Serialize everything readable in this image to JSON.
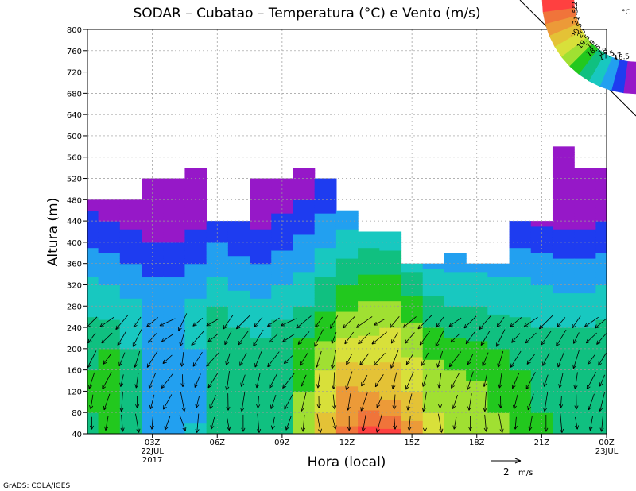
{
  "chart_data": {
    "type": "heatmap",
    "title": "SODAR – Cubatao – Temperatura (°C) e Vento (m/s)",
    "xlabel": "Hora (local)",
    "ylabel": "Altura (m)",
    "ylim": [
      40,
      800
    ],
    "xlim": [
      0,
      24
    ],
    "y_ticks": [
      40,
      80,
      120,
      160,
      200,
      240,
      280,
      320,
      360,
      400,
      440,
      480,
      520,
      560,
      600,
      640,
      680,
      720,
      760,
      800
    ],
    "x_ticks": [
      {
        "x": 3,
        "label": "03Z",
        "sub1": "22JUL",
        "sub2": "2017"
      },
      {
        "x": 6,
        "label": "06Z",
        "sub1": "",
        "sub2": ""
      },
      {
        "x": 9,
        "label": "09Z",
        "sub1": "",
        "sub2": ""
      },
      {
        "x": 12,
        "label": "12Z",
        "sub1": "",
        "sub2": ""
      },
      {
        "x": 15,
        "label": "15Z",
        "sub1": "",
        "sub2": ""
      },
      {
        "x": 18,
        "label": "18Z",
        "sub1": "",
        "sub2": ""
      },
      {
        "x": 21,
        "label": "21Z",
        "sub1": "",
        "sub2": ""
      },
      {
        "x": 24,
        "label": "00Z",
        "sub1": "23JUL",
        "sub2": ""
      }
    ],
    "grid": true,
    "colorbar": {
      "unit": "°C",
      "levels": [
        "22",
        "21.5",
        "21",
        "20.5",
        "20",
        "19.5",
        "19",
        "18.5",
        "18",
        "17.5",
        "17",
        "16.5"
      ],
      "colors": [
        "#ff4040",
        "#f0743a",
        "#ec9a38",
        "#e4c236",
        "#d8e03a",
        "#a0e032",
        "#22c81e",
        "#10c080",
        "#18c8c0",
        "#22a0f0",
        "#1e3cf0",
        "#9618c8"
      ]
    },
    "data_top": [
      480,
      480,
      480,
      520,
      520,
      540,
      440,
      440,
      520,
      520,
      540,
      520,
      460,
      420,
      420,
      360,
      360,
      380,
      360,
      360,
      440,
      440,
      580,
      540,
      540
    ],
    "temperature_grid": {
      "y": [
        40,
        80,
        120,
        160,
        200,
        240,
        280,
        320,
        360,
        400,
        440,
        480,
        520,
        560
      ],
      "rows": [
        [
          18.9,
          19.1,
          18.8,
          18.0,
          17.8,
          18.2,
          18.9,
          18.8,
          18.7,
          19.0,
          19.6,
          20.6,
          21.6,
          22.2,
          22.2,
          21.4,
          20.1,
          19.9,
          19.8,
          19.6,
          19.4,
          19.3,
          19.0,
          18.8,
          19.0
        ],
        [
          19.0,
          19.1,
          18.7,
          17.8,
          17.6,
          17.8,
          18.6,
          18.5,
          18.6,
          18.9,
          19.6,
          20.5,
          21.3,
          21.6,
          21.4,
          20.8,
          20.0,
          19.8,
          19.7,
          19.5,
          19.2,
          19.0,
          18.8,
          18.7,
          18.9
        ],
        [
          19.1,
          19.1,
          18.7,
          17.8,
          17.6,
          17.8,
          18.7,
          18.6,
          18.7,
          18.9,
          19.5,
          20.3,
          21.1,
          21.0,
          20.8,
          20.5,
          19.9,
          19.7,
          19.6,
          19.4,
          19.1,
          18.9,
          18.8,
          18.8,
          18.9
        ],
        [
          19.0,
          19.2,
          18.6,
          17.7,
          17.6,
          17.8,
          18.8,
          18.7,
          18.8,
          19.0,
          19.4,
          20.0,
          20.7,
          20.6,
          20.6,
          20.2,
          19.7,
          19.5,
          19.4,
          19.2,
          19.0,
          18.8,
          18.9,
          18.9,
          19.0
        ],
        [
          18.8,
          19.0,
          18.5,
          17.8,
          17.7,
          18.0,
          18.8,
          18.6,
          18.6,
          18.9,
          19.2,
          19.6,
          20.2,
          20.2,
          20.3,
          19.9,
          19.3,
          19.2,
          19.1,
          19.0,
          18.8,
          18.6,
          18.7,
          18.8,
          18.9
        ],
        [
          18.6,
          18.6,
          18.4,
          18.0,
          17.9,
          18.2,
          18.7,
          18.5,
          18.4,
          18.6,
          18.8,
          19.3,
          19.8,
          19.9,
          20.0,
          19.6,
          19.0,
          18.8,
          18.8,
          18.7,
          18.6,
          18.5,
          18.5,
          18.5,
          18.6
        ],
        [
          18.4,
          18.3,
          18.1,
          17.9,
          17.9,
          18.1,
          18.5,
          18.3,
          18.1,
          18.3,
          18.5,
          18.9,
          19.4,
          19.6,
          19.6,
          19.2,
          18.7,
          18.5,
          18.5,
          18.4,
          18.4,
          18.3,
          18.2,
          18.2,
          18.3
        ],
        [
          18.1,
          18.0,
          17.8,
          17.6,
          17.6,
          17.8,
          18.1,
          17.9,
          17.8,
          18.0,
          18.2,
          18.6,
          19.0,
          19.2,
          19.2,
          18.8,
          18.3,
          18.2,
          18.2,
          18.1,
          18.1,
          18.0,
          17.9,
          17.9,
          18.0
        ],
        [
          17.8,
          17.7,
          17.5,
          17.3,
          17.3,
          17.5,
          17.8,
          17.6,
          17.5,
          17.7,
          17.9,
          18.3,
          18.6,
          18.8,
          18.8,
          18.3,
          17.9,
          17.9,
          17.9,
          17.8,
          17.8,
          17.7,
          17.6,
          17.6,
          17.7
        ],
        [
          17.4,
          17.3,
          17.2,
          17.0,
          17.0,
          17.2,
          17.5,
          17.3,
          17.2,
          17.4,
          17.6,
          17.9,
          18.2,
          18.4,
          18.3,
          17.9,
          17.5,
          17.5,
          17.5,
          17.5,
          17.4,
          17.3,
          17.2,
          17.2,
          17.3
        ],
        [
          17.1,
          17.0,
          16.9,
          16.8,
          16.8,
          16.9,
          17.2,
          17.0,
          16.9,
          17.1,
          17.3,
          17.6,
          17.9,
          18.0,
          18.0,
          17.6,
          17.2,
          17.2,
          17.2,
          17.2,
          17.0,
          16.9,
          16.9,
          16.9,
          17.0
        ],
        [
          16.9,
          16.8,
          16.7,
          16.6,
          16.6,
          16.7,
          16.9,
          16.8,
          16.7,
          16.8,
          17.0,
          17.3,
          17.6,
          17.7,
          17.7,
          17.3,
          16.9,
          16.9,
          16.9,
          16.9,
          16.8,
          16.7,
          16.7,
          16.7,
          16.8
        ],
        [
          16.7,
          16.6,
          16.5,
          16.4,
          16.4,
          16.5,
          16.7,
          16.6,
          16.5,
          16.6,
          16.8,
          17.0,
          17.3,
          17.4,
          17.4,
          17.0,
          16.7,
          16.7,
          16.7,
          16.7,
          16.6,
          16.5,
          16.5,
          16.5,
          16.6
        ],
        [
          16.5,
          16.4,
          16.3,
          16.2,
          16.2,
          16.3,
          16.5,
          16.4,
          16.3,
          16.4,
          16.6,
          16.8,
          17.0,
          17.1,
          17.1,
          16.8,
          16.5,
          16.5,
          16.5,
          16.5,
          16.4,
          16.3,
          16.3,
          16.3,
          16.4
        ]
      ]
    },
    "wind": {
      "x": [
        0.2,
        0.9,
        1.6,
        2.3,
        3.0,
        3.7,
        4.4,
        5.1,
        5.8,
        6.5,
        7.2,
        7.9,
        8.6,
        9.3,
        10.0,
        10.7,
        11.4,
        12.1,
        12.8,
        13.5,
        14.2,
        14.9,
        15.6,
        16.3,
        17.0,
        17.7,
        18.4,
        19.1,
        19.8,
        20.5,
        21.2,
        21.9,
        22.6,
        23.3,
        23.8
      ],
      "y": [
        60,
        100,
        140,
        180,
        220,
        250
      ],
      "angles_deg": [
        180,
        190,
        175,
        170,
        185,
        200,
        160,
        185,
        195,
        170,
        180,
        175,
        190,
        200,
        185,
        170,
        165,
        180,
        190,
        195,
        175,
        185,
        180,
        170,
        190,
        180,
        175,
        170,
        185,
        190,
        180,
        175,
        170,
        190,
        185
      ],
      "speed_ms": 1.5,
      "reference": {
        "speed_ms": 2,
        "label": "2",
        "unit": "m/s"
      }
    },
    "credit": "GrADS: COLA/IGES"
  }
}
